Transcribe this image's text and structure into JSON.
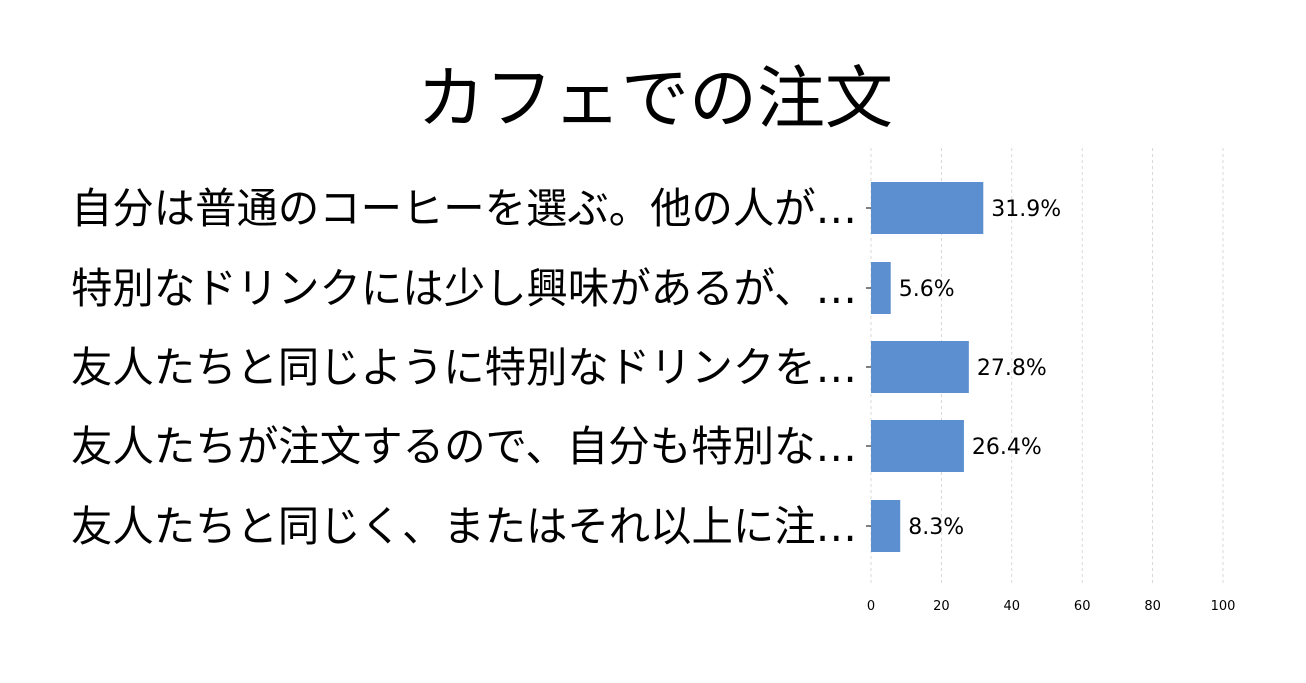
{
  "chart_data": {
    "type": "bar",
    "orientation": "horizontal",
    "title": "カフェでの注文",
    "xlabel": "",
    "ylabel": "",
    "xlim": [
      0,
      100
    ],
    "x_ticks": [
      "0",
      "20",
      "40",
      "60",
      "80",
      "100"
    ],
    "grid": true,
    "categories": [
      "自分は普通のコーヒーを選ぶ。他の人が…",
      "特別なドリンクには少し興味があるが、…",
      "友人たちと同じように特別なドリンクを…",
      "友人たちが注文するので、自分も特別な…",
      "友人たちと同じく、またはそれ以上に注…"
    ],
    "values": [
      31.9,
      5.6,
      27.8,
      26.4,
      8.3
    ],
    "value_labels": [
      "31.9%",
      "5.6%",
      "27.8%",
      "26.4%",
      "8.3%"
    ],
    "bar_color": "#5b8fd0"
  }
}
